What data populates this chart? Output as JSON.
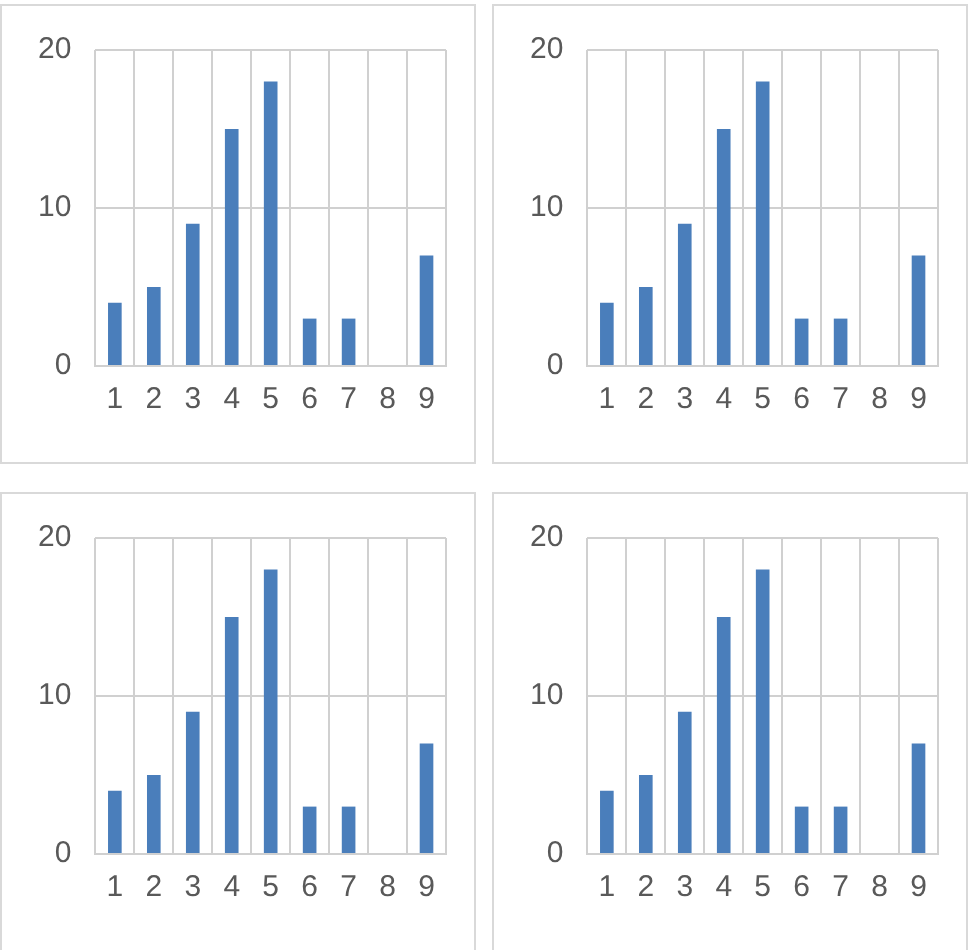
{
  "chart_data": [
    {
      "type": "bar",
      "categories": [
        "1",
        "2",
        "3",
        "4",
        "5",
        "6",
        "7",
        "8",
        "9"
      ],
      "values": [
        4,
        5,
        9,
        15,
        18,
        3,
        3,
        0,
        7
      ],
      "color": "#4a7ebb",
      "ylim": [
        0,
        20
      ],
      "yticks": [
        0,
        10,
        20
      ],
      "grid": true
    },
    {
      "type": "bar",
      "categories": [
        "1",
        "2",
        "3",
        "4",
        "5",
        "6",
        "7",
        "8",
        "9"
      ],
      "values": [
        4,
        5,
        9,
        15,
        18,
        3,
        3,
        0,
        7
      ],
      "color": "#4a7ebb",
      "ylim": [
        0,
        20
      ],
      "yticks": [
        0,
        10,
        20
      ],
      "grid": true
    },
    {
      "type": "bar",
      "categories": [
        "1",
        "2",
        "3",
        "4",
        "5",
        "6",
        "7",
        "8",
        "9"
      ],
      "values": [
        4,
        5,
        9,
        15,
        18,
        3,
        3,
        0,
        7
      ],
      "color": "#4a7ebb",
      "ylim": [
        0,
        20
      ],
      "yticks": [
        0,
        10,
        20
      ],
      "grid": true
    },
    {
      "type": "bar",
      "categories": [
        "1",
        "2",
        "3",
        "4",
        "5",
        "6",
        "7",
        "8",
        "9"
      ],
      "values": [
        4,
        5,
        9,
        15,
        18,
        3,
        3,
        0,
        7
      ],
      "color": "#4a7ebb",
      "ylim": [
        0,
        20
      ],
      "yticks": [
        0,
        10,
        20
      ],
      "grid": true
    }
  ]
}
